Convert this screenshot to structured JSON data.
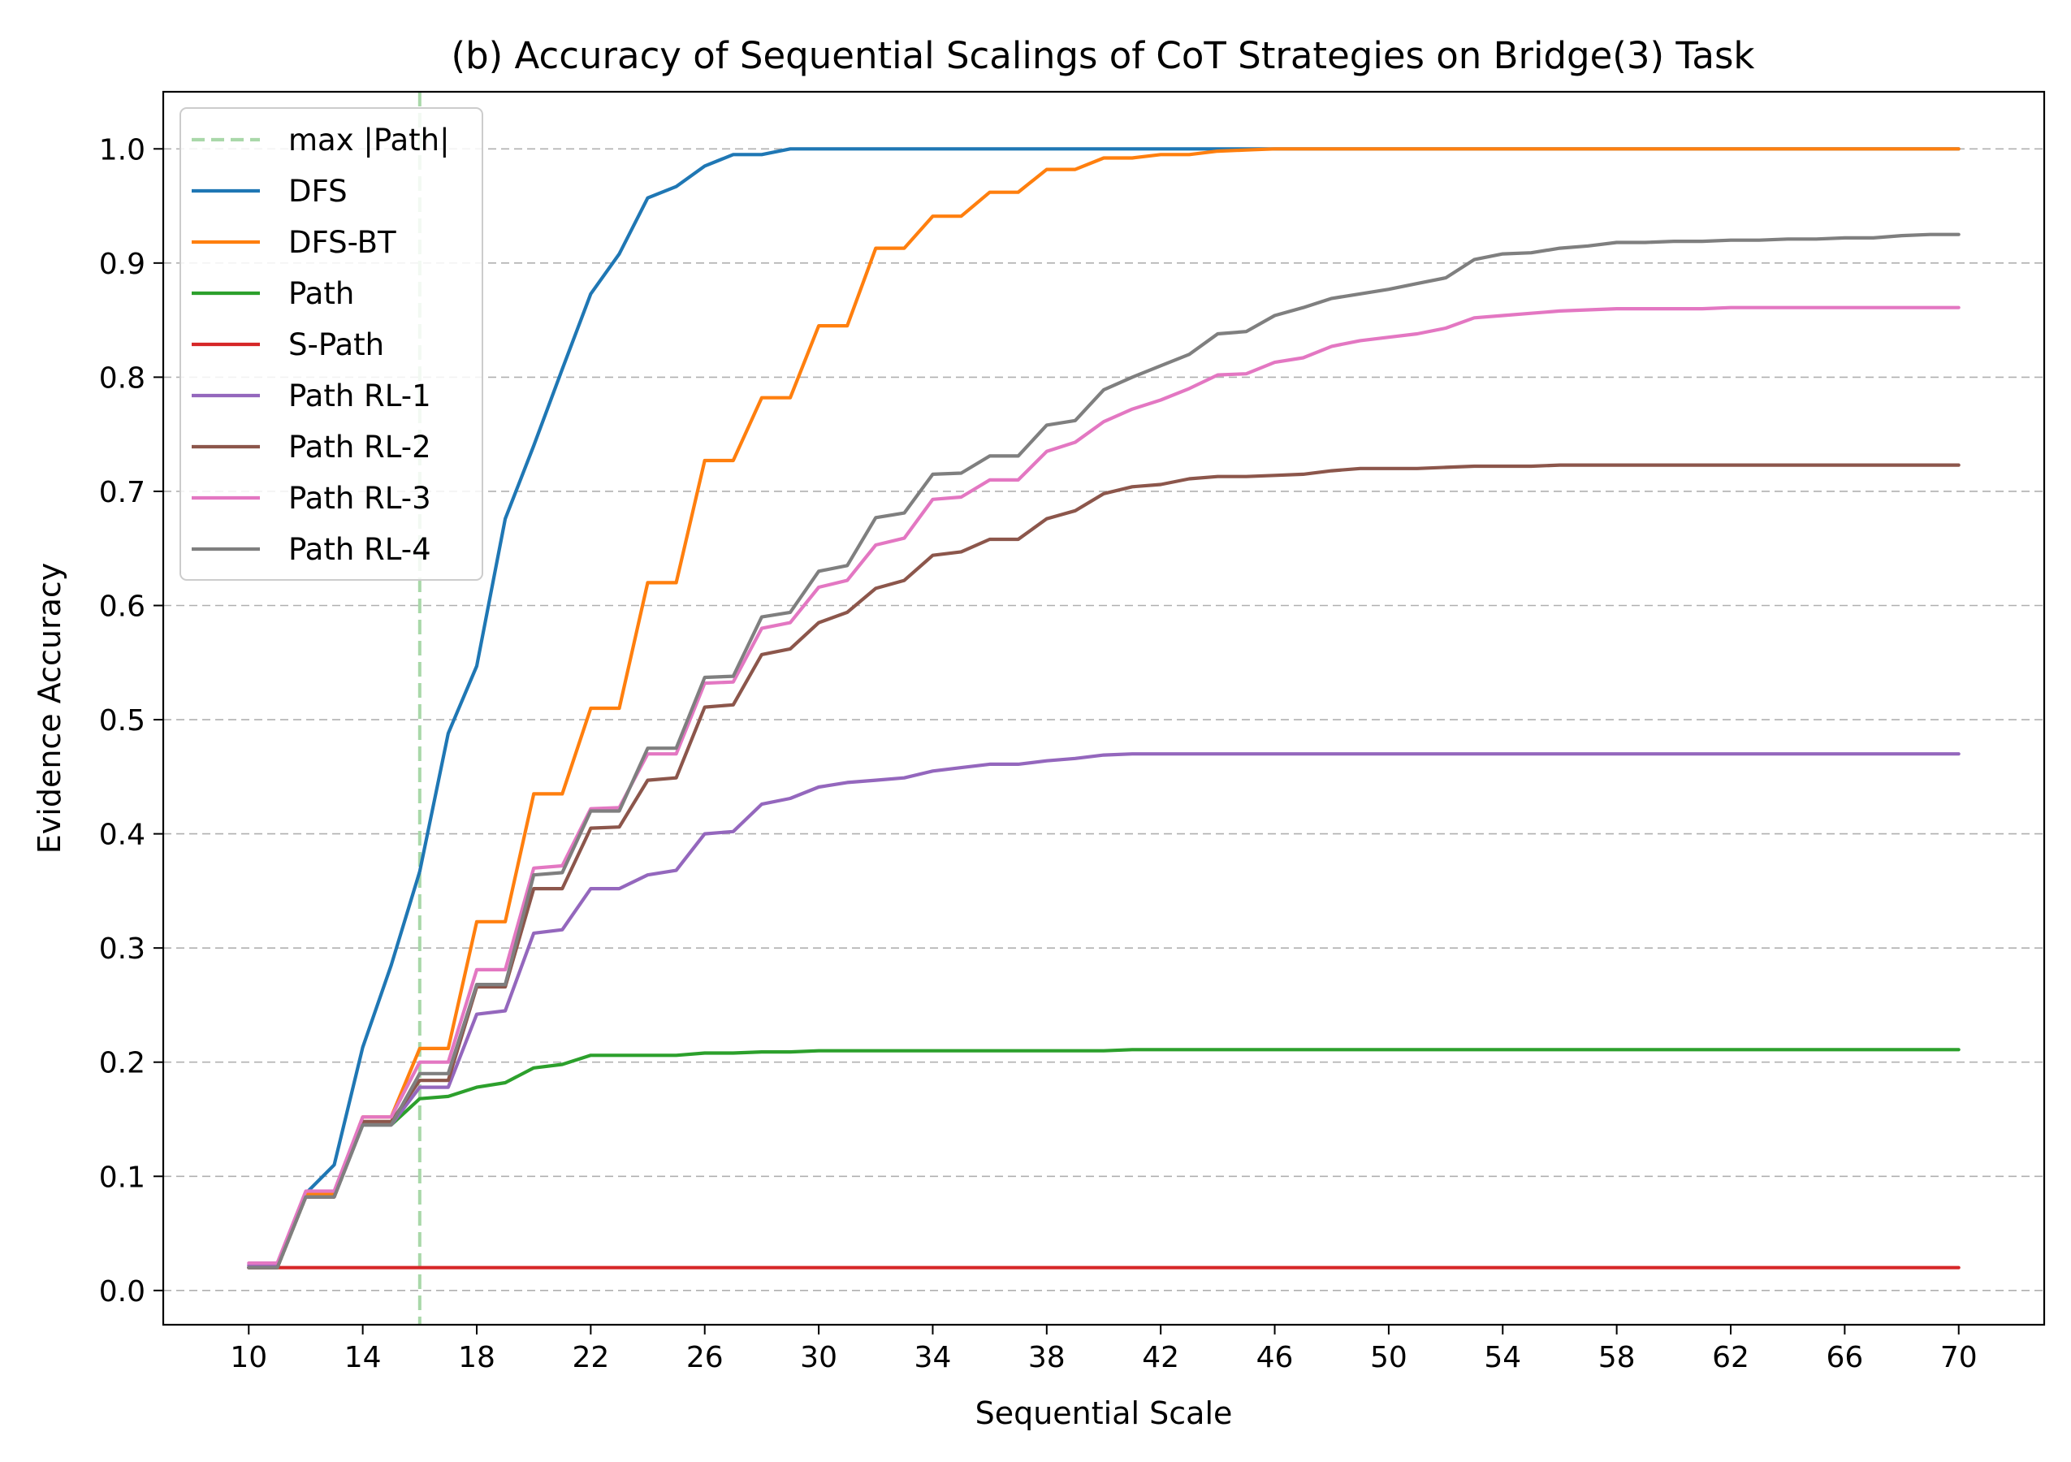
{
  "chart_data": {
    "type": "line",
    "title": "(b) Accuracy of Sequential Scalings of CoT Strategies on Bridge(3) Task",
    "xlabel": "Sequential Scale",
    "ylabel": "Evidence Accuracy",
    "xlim": [
      7,
      73
    ],
    "ylim": [
      -0.03,
      1.05
    ],
    "xticks": [
      "10",
      "14",
      "18",
      "22",
      "26",
      "30",
      "34",
      "38",
      "42",
      "46",
      "50",
      "54",
      "58",
      "62",
      "66",
      "70"
    ],
    "yticks": [
      "0.0",
      "0.1",
      "0.2",
      "0.3",
      "0.4",
      "0.5",
      "0.6",
      "0.7",
      "0.8",
      "0.9",
      "1.0"
    ],
    "grid": "horizontal dashed",
    "legend_position": "upper-left",
    "reference_line": {
      "label": "max |Path|",
      "x": 16,
      "color": "#a9d8a9",
      "style": "dashed"
    },
    "x": [
      10,
      11,
      12,
      13,
      14,
      15,
      16,
      17,
      18,
      19,
      20,
      21,
      22,
      23,
      24,
      25,
      26,
      27,
      28,
      29,
      30,
      31,
      32,
      33,
      34,
      35,
      36,
      37,
      38,
      39,
      40,
      41,
      42,
      43,
      44,
      45,
      46,
      47,
      48,
      49,
      50,
      51,
      52,
      53,
      54,
      55,
      56,
      57,
      58,
      59,
      60,
      61,
      62,
      63,
      64,
      65,
      66,
      67,
      68,
      69,
      70
    ],
    "series": [
      {
        "name": "DFS",
        "color": "#1f77b4",
        "values": [
          0.02,
          0.02,
          0.085,
          0.11,
          0.213,
          0.285,
          0.367,
          0.488,
          0.547,
          0.676,
          0.74,
          0.807,
          0.873,
          0.908,
          0.957,
          0.967,
          0.985,
          0.995,
          0.995,
          1.0,
          1.0,
          1.0,
          1.0,
          1.0,
          1.0,
          1.0,
          1.0,
          1.0,
          1.0,
          1.0,
          1.0,
          1.0,
          1.0,
          1.0,
          1.0,
          1.0,
          1.0,
          1.0,
          1.0,
          1.0,
          1.0,
          1.0,
          1.0,
          1.0,
          1.0,
          1.0,
          1.0,
          1.0,
          1.0,
          1.0,
          1.0,
          1.0,
          1.0,
          1.0,
          1.0,
          1.0,
          1.0,
          1.0,
          1.0,
          1.0,
          1.0
        ]
      },
      {
        "name": "DFS-BT",
        "color": "#ff7f0e",
        "values": [
          0.02,
          0.02,
          0.085,
          0.085,
          0.152,
          0.152,
          0.212,
          0.212,
          0.323,
          0.323,
          0.435,
          0.435,
          0.51,
          0.51,
          0.62,
          0.62,
          0.727,
          0.727,
          0.782,
          0.782,
          0.845,
          0.845,
          0.913,
          0.913,
          0.941,
          0.941,
          0.962,
          0.962,
          0.982,
          0.982,
          0.992,
          0.992,
          0.995,
          0.995,
          0.998,
          0.999,
          1.0,
          1.0,
          1.0,
          1.0,
          1.0,
          1.0,
          1.0,
          1.0,
          1.0,
          1.0,
          1.0,
          1.0,
          1.0,
          1.0,
          1.0,
          1.0,
          1.0,
          1.0,
          1.0,
          1.0,
          1.0,
          1.0,
          1.0,
          1.0,
          1.0
        ]
      },
      {
        "name": "Path",
        "color": "#2ca02c",
        "values": [
          0.02,
          0.02,
          0.082,
          0.082,
          0.145,
          0.145,
          0.168,
          0.17,
          0.178,
          0.182,
          0.195,
          0.198,
          0.206,
          0.206,
          0.206,
          0.206,
          0.208,
          0.208,
          0.209,
          0.209,
          0.21,
          0.21,
          0.21,
          0.21,
          0.21,
          0.21,
          0.21,
          0.21,
          0.21,
          0.21,
          0.21,
          0.211,
          0.211,
          0.211,
          0.211,
          0.211,
          0.211,
          0.211,
          0.211,
          0.211,
          0.211,
          0.211,
          0.211,
          0.211,
          0.211,
          0.211,
          0.211,
          0.211,
          0.211,
          0.211,
          0.211,
          0.211,
          0.211,
          0.211,
          0.211,
          0.211,
          0.211,
          0.211,
          0.211,
          0.211,
          0.211
        ]
      },
      {
        "name": "S-Path",
        "color": "#d62728",
        "values": [
          0.02,
          0.02,
          0.02,
          0.02,
          0.02,
          0.02,
          0.02,
          0.02,
          0.02,
          0.02,
          0.02,
          0.02,
          0.02,
          0.02,
          0.02,
          0.02,
          0.02,
          0.02,
          0.02,
          0.02,
          0.02,
          0.02,
          0.02,
          0.02,
          0.02,
          0.02,
          0.02,
          0.02,
          0.02,
          0.02,
          0.02,
          0.02,
          0.02,
          0.02,
          0.02,
          0.02,
          0.02,
          0.02,
          0.02,
          0.02,
          0.02,
          0.02,
          0.02,
          0.02,
          0.02,
          0.02,
          0.02,
          0.02,
          0.02,
          0.02,
          0.02,
          0.02,
          0.02,
          0.02,
          0.02,
          0.02,
          0.02,
          0.02,
          0.02,
          0.02,
          0.02
        ]
      },
      {
        "name": "Path RL-1",
        "color": "#9467bd",
        "values": [
          0.022,
          0.022,
          0.082,
          0.082,
          0.145,
          0.145,
          0.178,
          0.178,
          0.242,
          0.245,
          0.313,
          0.316,
          0.352,
          0.352,
          0.364,
          0.368,
          0.4,
          0.402,
          0.426,
          0.431,
          0.441,
          0.445,
          0.447,
          0.449,
          0.455,
          0.458,
          0.461,
          0.461,
          0.464,
          0.466,
          0.469,
          0.47,
          0.47,
          0.47,
          0.47,
          0.47,
          0.47,
          0.47,
          0.47,
          0.47,
          0.47,
          0.47,
          0.47,
          0.47,
          0.47,
          0.47,
          0.47,
          0.47,
          0.47,
          0.47,
          0.47,
          0.47,
          0.47,
          0.47,
          0.47,
          0.47,
          0.47,
          0.47,
          0.47,
          0.47,
          0.47
        ]
      },
      {
        "name": "Path RL-2",
        "color": "#8c564b",
        "values": [
          0.02,
          0.02,
          0.082,
          0.082,
          0.148,
          0.148,
          0.184,
          0.184,
          0.266,
          0.266,
          0.352,
          0.352,
          0.405,
          0.406,
          0.447,
          0.449,
          0.511,
          0.513,
          0.557,
          0.562,
          0.585,
          0.594,
          0.615,
          0.622,
          0.644,
          0.647,
          0.658,
          0.658,
          0.676,
          0.683,
          0.698,
          0.704,
          0.706,
          0.711,
          0.713,
          0.713,
          0.714,
          0.715,
          0.718,
          0.72,
          0.72,
          0.72,
          0.721,
          0.722,
          0.722,
          0.722,
          0.723,
          0.723,
          0.723,
          0.723,
          0.723,
          0.723,
          0.723,
          0.723,
          0.723,
          0.723,
          0.723,
          0.723,
          0.723,
          0.723,
          0.723
        ]
      },
      {
        "name": "Path RL-3",
        "color": "#e377c2",
        "values": [
          0.024,
          0.024,
          0.087,
          0.087,
          0.152,
          0.152,
          0.2,
          0.2,
          0.281,
          0.281,
          0.37,
          0.372,
          0.422,
          0.423,
          0.47,
          0.47,
          0.532,
          0.533,
          0.58,
          0.585,
          0.616,
          0.622,
          0.653,
          0.659,
          0.693,
          0.695,
          0.71,
          0.71,
          0.735,
          0.743,
          0.761,
          0.772,
          0.78,
          0.79,
          0.802,
          0.803,
          0.813,
          0.817,
          0.827,
          0.832,
          0.835,
          0.838,
          0.843,
          0.852,
          0.854,
          0.856,
          0.858,
          0.859,
          0.86,
          0.86,
          0.86,
          0.86,
          0.861,
          0.861,
          0.861,
          0.861,
          0.861,
          0.861,
          0.861,
          0.861,
          0.861
        ]
      },
      {
        "name": "Path RL-4",
        "color": "#7f7f7f",
        "values": [
          0.02,
          0.02,
          0.082,
          0.082,
          0.145,
          0.145,
          0.19,
          0.19,
          0.268,
          0.268,
          0.364,
          0.366,
          0.42,
          0.42,
          0.475,
          0.475,
          0.537,
          0.538,
          0.59,
          0.594,
          0.63,
          0.635,
          0.677,
          0.681,
          0.715,
          0.716,
          0.731,
          0.731,
          0.758,
          0.762,
          0.789,
          0.8,
          0.81,
          0.82,
          0.838,
          0.84,
          0.854,
          0.861,
          0.869,
          0.873,
          0.877,
          0.882,
          0.887,
          0.903,
          0.908,
          0.909,
          0.913,
          0.915,
          0.918,
          0.918,
          0.919,
          0.919,
          0.92,
          0.92,
          0.921,
          0.921,
          0.922,
          0.922,
          0.924,
          0.925,
          0.925
        ]
      }
    ]
  }
}
